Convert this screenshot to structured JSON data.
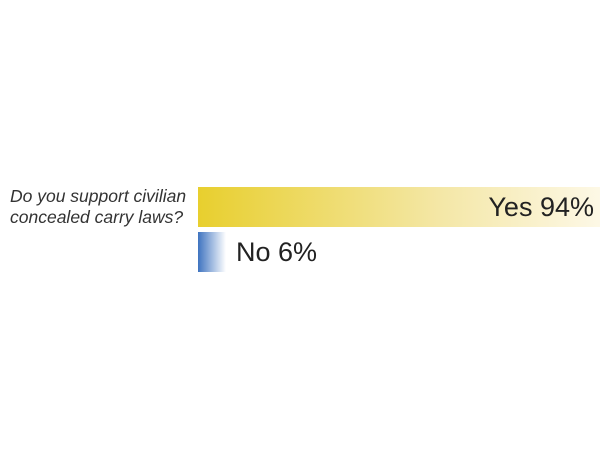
{
  "chart_data": {
    "type": "bar",
    "orientation": "horizontal",
    "question": "Do you support civilian concealed carry laws?",
    "categories": [
      "Yes",
      "No"
    ],
    "values": [
      94,
      6
    ],
    "labels": [
      "Yes 94%",
      "No 6%"
    ],
    "colors": [
      "#e8cf2e",
      "#3f74c0"
    ],
    "grid": false
  }
}
